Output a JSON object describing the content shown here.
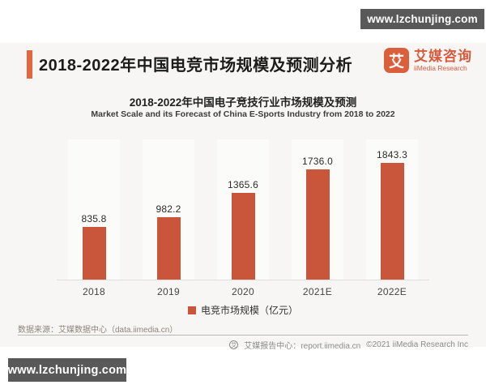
{
  "watermark": {
    "text": "www.lzchunjing.com"
  },
  "header": {
    "title": "2018-2022年中国电竞市场规模及预测分析",
    "accent_color": "#E2673E",
    "logo": {
      "icon_char": "艾",
      "name_cn": "艾媒咨询",
      "name_en": "iiMedia Research",
      "color": "#D85A3C"
    }
  },
  "chart_data": {
    "type": "bar",
    "title": "2018-2022年中国电子竞技行业市场规模及预测",
    "subtitle": "Market Scale and its Forecast of China E-Sports Industry from 2018 to 2022",
    "categories": [
      "2018",
      "2019",
      "2020",
      "2021E",
      "2022E"
    ],
    "values": [
      835.8,
      982.2,
      1365.6,
      1736.0,
      1843.3
    ],
    "value_labels": [
      "835.8",
      "982.2",
      "1365.6",
      "1736.0",
      "1843.3"
    ],
    "series_name": "电竞市场规模（亿元）",
    "bar_color": "#C9553A",
    "ylim": [
      0,
      2100
    ],
    "grid": false,
    "legend_position": "bottom",
    "ylabel": "",
    "xlabel": ""
  },
  "footer": {
    "source": "数据来源：艾媒数据中心（data.iimedia.cn）",
    "report_center": "艾媒报告中心：report.iimedia.cn",
    "copyright": "©2021  iiMedia Research  Inc"
  }
}
